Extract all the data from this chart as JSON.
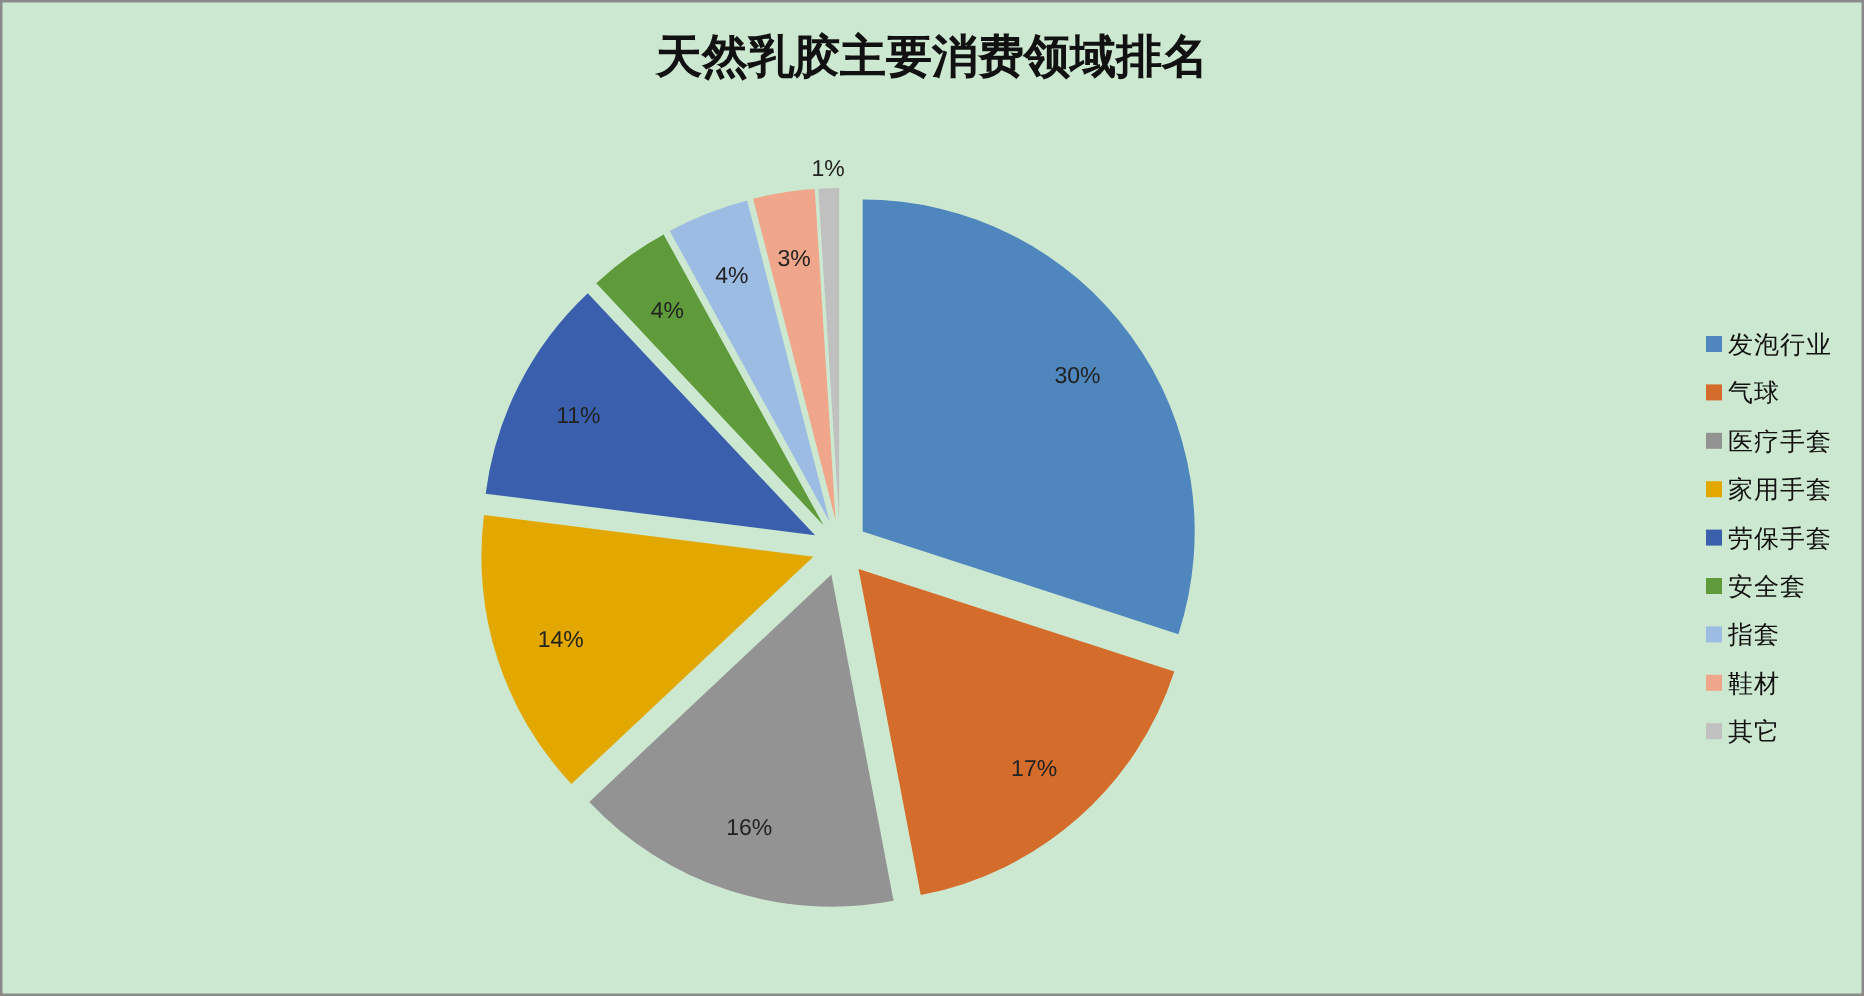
{
  "chart_data": {
    "type": "pie",
    "title": "天然乳胶主要消费领域排名",
    "categories": [
      "发泡行业",
      "气球",
      "医疗手套",
      "家用手套",
      "劳保手套",
      "安全套",
      "指套",
      "鞋材",
      "其它"
    ],
    "values": [
      30,
      17,
      16,
      14,
      11,
      4,
      4,
      3,
      1
    ],
    "colors": [
      "#4f86bd",
      "#d46c2b",
      "#939393",
      "#e2a800",
      "#3a60ad",
      "#5f9a3b",
      "#9cbce3",
      "#f0a68a",
      "#c0c0c0"
    ],
    "value_labels": [
      "30%",
      "17%",
      "16%",
      "14%",
      "11%",
      "4%",
      "4%",
      "3%",
      "1%"
    ],
    "legend": "right"
  }
}
